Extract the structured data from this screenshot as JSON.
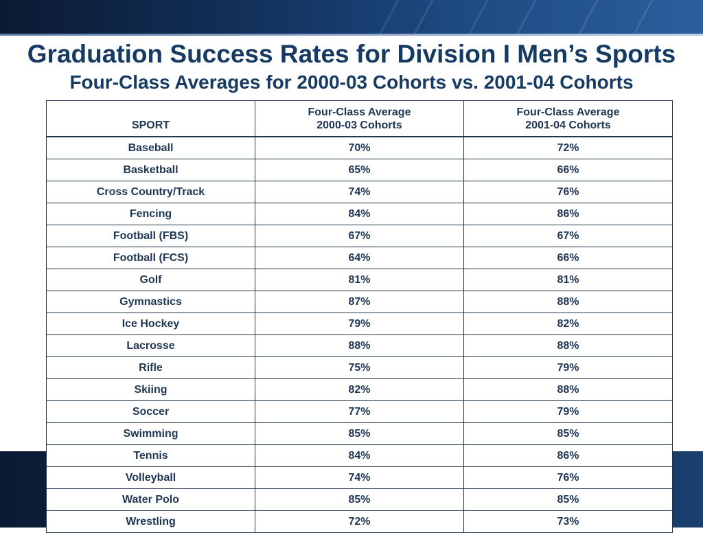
{
  "slide": {
    "title": "Graduation Success Rates for Division I Men’s Sports",
    "subtitle": "Four-Class Averages for 2000-03 Cohorts vs. 2001-04 Cohorts",
    "colors": {
      "title": "#163a62",
      "band": "#12305a",
      "table_text": "#1e3554"
    }
  },
  "table": {
    "headers": [
      {
        "line1": "",
        "line2": "SPORT"
      },
      {
        "line1": "Four-Class Average",
        "line2": "2000-03 Cohorts"
      },
      {
        "line1": "Four-Class Average",
        "line2": "2001-04 Cohorts"
      }
    ],
    "rows": [
      [
        "Baseball",
        "70%",
        "72%"
      ],
      [
        "Basketball",
        "65%",
        "66%"
      ],
      [
        "Cross Country/Track",
        "74%",
        "76%"
      ],
      [
        "Fencing",
        "84%",
        "86%"
      ],
      [
        "Football (FBS)",
        "67%",
        "67%"
      ],
      [
        "Football (FCS)",
        "64%",
        "66%"
      ],
      [
        "Golf",
        "81%",
        "81%"
      ],
      [
        "Gymnastics",
        "87%",
        "88%"
      ],
      [
        "Ice Hockey",
        "79%",
        "82%"
      ],
      [
        "Lacrosse",
        "88%",
        "88%"
      ],
      [
        "Rifle",
        "75%",
        "79%"
      ],
      [
        "Skiing",
        "82%",
        "88%"
      ],
      [
        "Soccer",
        "77%",
        "79%"
      ],
      [
        "Swimming",
        "85%",
        "85%"
      ],
      [
        "Tennis",
        "84%",
        "86%"
      ],
      [
        "Volleyball",
        "74%",
        "76%"
      ],
      [
        "Water Polo",
        "85%",
        "85%"
      ],
      [
        "Wrestling",
        "72%",
        "73%"
      ]
    ]
  }
}
